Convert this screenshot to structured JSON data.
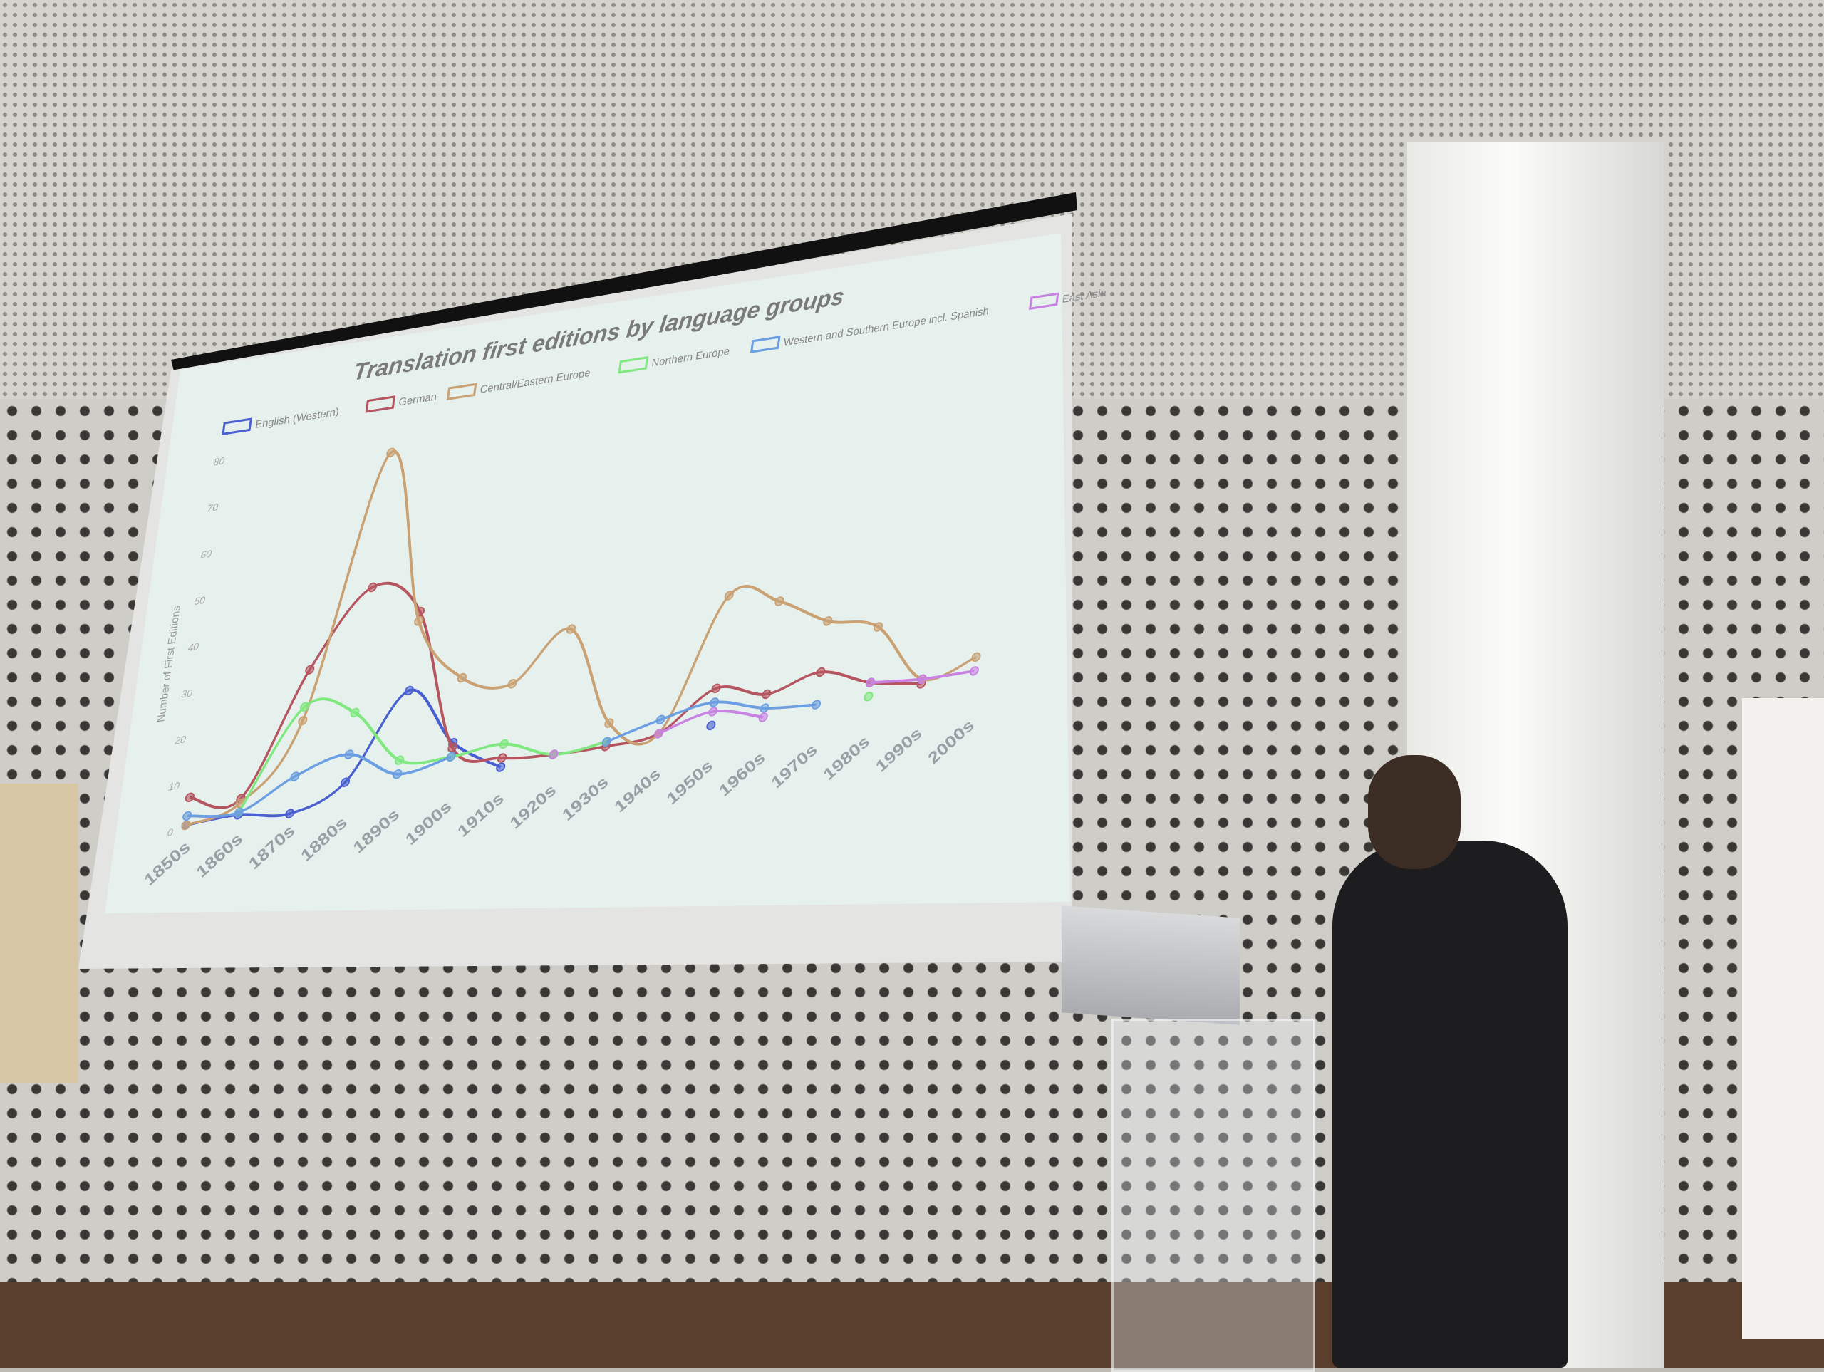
{
  "chart_data": {
    "type": "line",
    "title": "Translation first editions by language groups",
    "ylabel": "Number of First Editions",
    "xlabel": "",
    "ylim": [
      0,
      80
    ],
    "yticks": [
      0,
      10,
      20,
      30,
      40,
      50,
      60,
      70,
      80
    ],
    "grid": false,
    "legend_position": "top",
    "smooth": true,
    "categories": [
      "1850s",
      "1860s",
      "1870s",
      "1880s",
      "1890s",
      "1900s",
      "1910s",
      "1920s",
      "1930s",
      "1940s",
      "1950s",
      "1960s",
      "1970s",
      "1980s",
      "1990s",
      "2000s"
    ],
    "series": [
      {
        "name": "English (Western)",
        "color": "#4a5fd0",
        "values": [
          1,
          1.5,
          0,
          5,
          23,
          10,
          3,
          null,
          null,
          null,
          5,
          null,
          null,
          null,
          null,
          null
        ]
      },
      {
        "name": "German",
        "color": "#b5555f",
        "values": [
          7,
          5,
          31,
          47,
          40,
          9,
          5,
          4,
          4,
          5,
          13,
          10,
          13,
          9,
          7,
          null
        ]
      },
      {
        "name": "Central/Eastern Europe",
        "color": "#c9a173",
        "values": [
          1,
          4,
          20,
          76,
          38,
          24,
          21,
          31,
          9,
          5,
          33,
          30,
          24,
          21,
          8,
          11
        ]
      },
      {
        "name": "Northern Europe",
        "color": "#7fe87f",
        "values": [
          null,
          2,
          23,
          20,
          8,
          7,
          8,
          4,
          5,
          null,
          null,
          null,
          null,
          6,
          null,
          null
        ]
      },
      {
        "name": "Western and Southern Europe incl. Spanish",
        "color": "#6c9fe2",
        "values": [
          3,
          2,
          8,
          11,
          5,
          7,
          null,
          null,
          5,
          8,
          10,
          7,
          6,
          null,
          null,
          null
        ]
      },
      {
        "name": "East Asia",
        "color": "#c883e2",
        "values": [
          null,
          null,
          null,
          null,
          null,
          null,
          null,
          4,
          null,
          5,
          8,
          5,
          null,
          9,
          8,
          8
        ]
      }
    ]
  }
}
